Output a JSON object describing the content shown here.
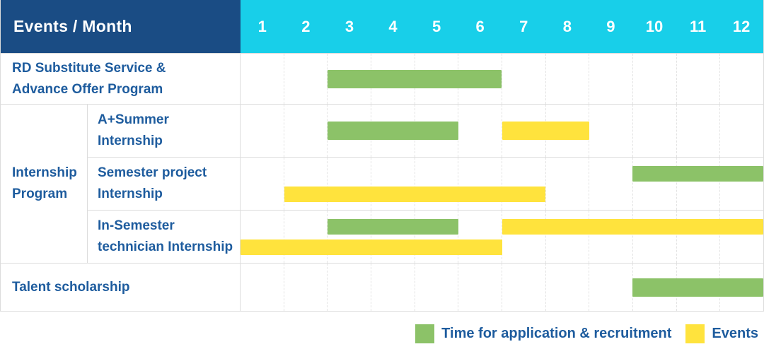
{
  "header": {
    "title": "Events / Month",
    "months": [
      "1",
      "2",
      "3",
      "4",
      "5",
      "6",
      "7",
      "8",
      "9",
      "10",
      "11",
      "12"
    ]
  },
  "colors": {
    "header_bg": "#1a4c84",
    "month_header_bg": "#18cfe9",
    "label_text": "#1e5c9e",
    "application_green": "#8cc268",
    "events_yellow": "#ffe33d",
    "gridline_dashed": "#e3e3e3",
    "row_border": "#dcdcdc",
    "background": "#ffffff"
  },
  "chart_data": {
    "type": "bar",
    "subtype": "gantt",
    "title": "Events / Month",
    "xlabel": "Month",
    "x_ticks": [
      1,
      2,
      3,
      4,
      5,
      6,
      7,
      8,
      9,
      10,
      11,
      12
    ],
    "x_range": [
      1,
      12
    ],
    "grid": "vertical-dashed",
    "legend_position": "bottom-right",
    "legend": [
      {
        "key": "application",
        "label": "Time for application & recruitment",
        "color": "#8cc268"
      },
      {
        "key": "events",
        "label": "Events",
        "color": "#ffe33d"
      }
    ],
    "group_label": {
      "text": "Internship Program",
      "lines": [
        "Internship",
        "Program"
      ]
    },
    "rows": [
      {
        "id": "rd-substitute-service",
        "label": "RD Substitute Service & Advance Offer Program",
        "label_lines": [
          "RD Substitute Service &",
          "Advance Offer Program"
        ],
        "group": null,
        "bars": [
          {
            "type": "application",
            "start_month": 3,
            "end_month": 6,
            "lane": "center"
          }
        ]
      },
      {
        "id": "a-plus-summer-internship",
        "label": "A+Summer Internship",
        "label_lines": [
          "A+Summer",
          "Internship"
        ],
        "group": "Internship Program",
        "bars": [
          {
            "type": "application",
            "start_month": 3,
            "end_month": 5,
            "lane": "center"
          },
          {
            "type": "events",
            "start_month": 7,
            "end_month": 8,
            "lane": "center"
          }
        ]
      },
      {
        "id": "semester-project-internship",
        "label": "Semester project Internship",
        "label_lines": [
          "Semester project",
          "Internship"
        ],
        "group": "Internship Program",
        "bars": [
          {
            "type": "application",
            "start_month": 10,
            "end_month": 12,
            "lane": "top"
          },
          {
            "type": "events",
            "start_month": 2,
            "end_month": 7,
            "lane": "bottom"
          }
        ]
      },
      {
        "id": "in-semester-technician-internship",
        "label": "In-Semester technician Internship",
        "label_lines": [
          "In-Semester",
          "technician Internship"
        ],
        "group": "Internship Program",
        "bars": [
          {
            "type": "application",
            "start_month": 3,
            "end_month": 5,
            "lane": "top"
          },
          {
            "type": "events",
            "start_month": 7,
            "end_month": 12,
            "lane": "top"
          },
          {
            "type": "events",
            "start_month": 1,
            "end_month": 6,
            "lane": "bottom"
          }
        ]
      },
      {
        "id": "talent-scholarship",
        "label": "Talent scholarship",
        "label_lines": [
          "Talent scholarship"
        ],
        "group": null,
        "bars": [
          {
            "type": "application",
            "start_month": 10,
            "end_month": 12,
            "lane": "center"
          }
        ]
      }
    ]
  }
}
